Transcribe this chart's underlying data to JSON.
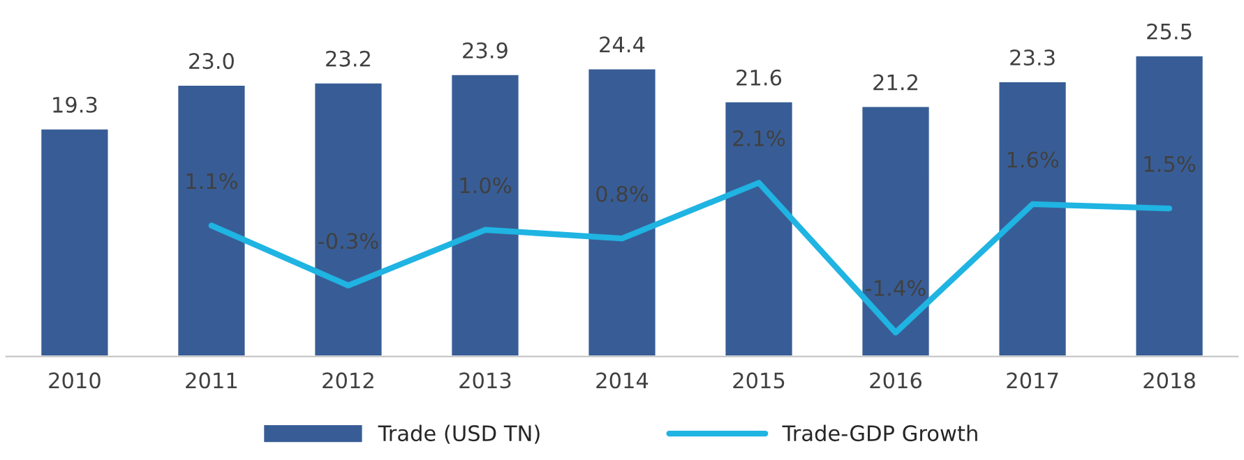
{
  "chart_data": {
    "type": "bar",
    "categories": [
      "2010",
      "2011",
      "2012",
      "2013",
      "2014",
      "2015",
      "2016",
      "2017",
      "2018"
    ],
    "series": [
      {
        "name": "Trade (USD TN)",
        "color": "#385d96",
        "values": [
          19.3,
          23.0,
          23.2,
          23.9,
          24.4,
          21.6,
          21.2,
          23.3,
          25.5
        ],
        "value_labels": [
          "19.3",
          "23.0",
          "23.2",
          "23.9",
          "24.4",
          "21.6",
          "21.2",
          "23.3",
          "25.5"
        ]
      },
      {
        "name": "Trade-GDP Growth",
        "type": "line",
        "axis": "y2",
        "color": "#1fb4e2",
        "values": [
          null,
          1.1,
          -0.3,
          1.0,
          0.8,
          2.1,
          -1.4,
          1.6,
          1.5
        ],
        "value_labels": [
          null,
          "1.1%",
          "-0.3%",
          "1.0%",
          "0.8%",
          "2.1%",
          "-1.4%",
          "1.6%",
          "1.5%"
        ]
      }
    ],
    "tick_labels": "x",
    "grid": false,
    "legend": "bottom",
    "marker": "none",
    "line_style": "solid"
  }
}
